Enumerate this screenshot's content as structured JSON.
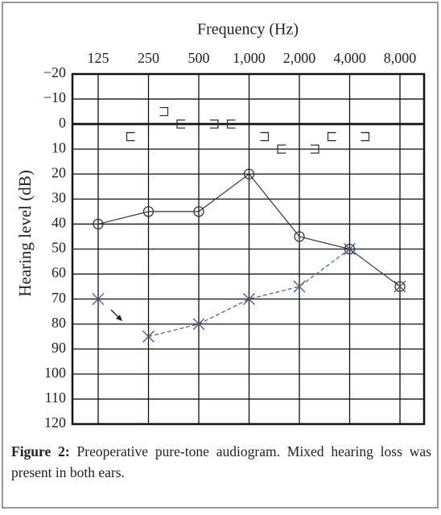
{
  "chart_data": {
    "type": "audiogram",
    "title": "Frequency  (Hz)",
    "y_label": "Hearing level (dB)",
    "categories": [
      "125",
      "250",
      "500",
      "1,000",
      "2,000",
      "4,000",
      "8,000"
    ],
    "ylim": [
      -20,
      120
    ],
    "y_inverted": true,
    "yticks": [
      {
        "value": -20,
        "label": "−20"
      },
      {
        "value": -10,
        "label": "−10"
      },
      0,
      10,
      20,
      30,
      40,
      50,
      60,
      70,
      80,
      90,
      100,
      110,
      120
    ],
    "grid": true,
    "zero_line": true,
    "series": [
      {
        "marker": "circle",
        "line": "solid",
        "color": "#333333",
        "values": [
          40,
          35,
          35,
          20,
          45,
          50,
          65
        ]
      },
      {
        "marker": "x",
        "line": "dashed",
        "color": "#4a5a8a",
        "values": [
          null,
          85,
          80,
          70,
          65,
          50,
          65
        ]
      },
      {
        "marker": "x",
        "line": "none",
        "color": "#4a5a8a",
        "values": [
          70,
          null,
          null,
          null,
          null,
          null,
          null
        ]
      },
      {
        "marker": "bracket-left",
        "line": "none",
        "color": "#333333",
        "values": [
          null,
          5,
          0,
          0,
          10,
          5,
          null
        ]
      },
      {
        "marker": "bracket-right",
        "line": "none",
        "color": "#333333",
        "values": [
          null,
          -5,
          0,
          5,
          10,
          5,
          null
        ]
      }
    ],
    "caption": {
      "label": "Figure 2:",
      "text": " Preoperative pure-tone audiogram. Mixed hearing loss was present in both ears."
    }
  }
}
